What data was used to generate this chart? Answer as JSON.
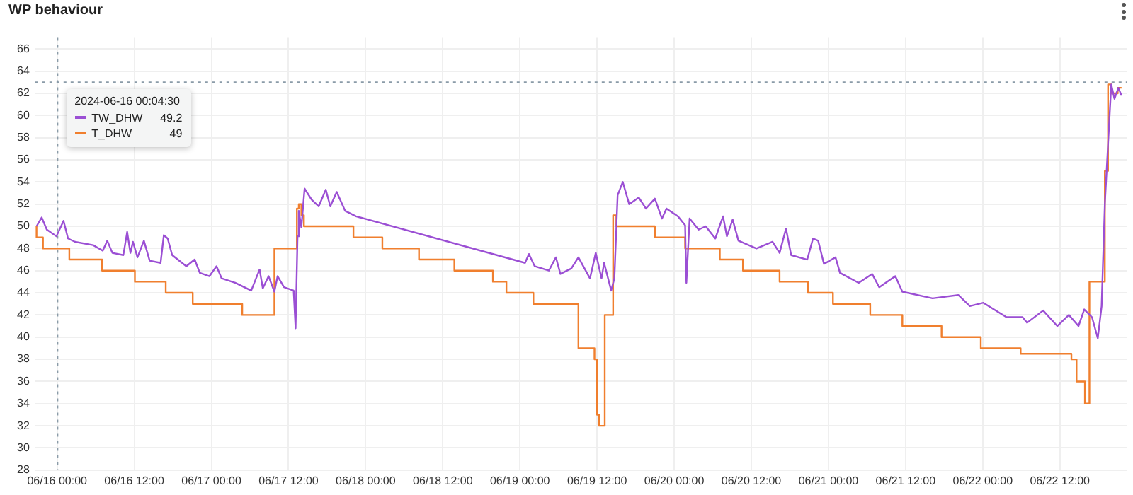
{
  "chart_data": {
    "type": "line",
    "title": "WP behaviour",
    "xlim": [
      "2024-06-15T20:36",
      "2024-06-22T22:30"
    ],
    "xticks": [
      {
        "value": "2024-06-16T00:00",
        "label": "06/16 00:00"
      },
      {
        "value": "2024-06-16T12:00",
        "label": "06/16 12:00"
      },
      {
        "value": "2024-06-17T00:00",
        "label": "06/17 00:00"
      },
      {
        "value": "2024-06-17T12:00",
        "label": "06/17 12:00"
      },
      {
        "value": "2024-06-18T00:00",
        "label": "06/18 00:00"
      },
      {
        "value": "2024-06-18T12:00",
        "label": "06/18 12:00"
      },
      {
        "value": "2024-06-19T00:00",
        "label": "06/19 00:00"
      },
      {
        "value": "2024-06-19T12:00",
        "label": "06/19 12:00"
      },
      {
        "value": "2024-06-20T00:00",
        "label": "06/20 00:00"
      },
      {
        "value": "2024-06-20T12:00",
        "label": "06/20 12:00"
      },
      {
        "value": "2024-06-21T00:00",
        "label": "06/21 00:00"
      },
      {
        "value": "2024-06-21T12:00",
        "label": "06/21 12:00"
      },
      {
        "value": "2024-06-22T00:00",
        "label": "06/22 00:00"
      },
      {
        "value": "2024-06-22T12:00",
        "label": "06/22 12:00"
      }
    ],
    "ylim": [
      28,
      67
    ],
    "yticks": [
      28,
      30,
      32,
      34,
      36,
      38,
      40,
      42,
      44,
      46,
      48,
      50,
      52,
      54,
      56,
      58,
      60,
      62,
      64,
      66
    ],
    "grid": true,
    "legend": "top left",
    "marker": "none",
    "line_style": "solid",
    "ref_lines": [
      {
        "axis": "x",
        "value": "2024-06-16T00:04:30",
        "color": "#8a9ba8",
        "line_style": "dotted"
      },
      {
        "axis": "y",
        "value": 63,
        "color": "#8a9ba8",
        "line_style": "dotted"
      }
    ],
    "annotations": [
      {
        "text": "2024-06-16 00:04:30",
        "x": "2024-06-16T00:04:30"
      },
      "49.2",
      "49"
    ],
    "series": [
      {
        "name": "TW_DHW",
        "color": "#9b4fd4",
        "x": [
          "2024-06-15T20:48",
          "2024-06-15T21:36",
          "2024-06-15T22:24",
          "2024-06-15T23:54",
          "2024-06-16T01:00",
          "2024-06-16T01:42",
          "2024-06-16T02:48",
          "2024-06-16T05:36",
          "2024-06-16T07:06",
          "2024-06-16T07:48",
          "2024-06-16T08:36",
          "2024-06-16T10:18",
          "2024-06-16T10:54",
          "2024-06-16T11:24",
          "2024-06-16T11:48",
          "2024-06-16T12:30",
          "2024-06-16T13:30",
          "2024-06-16T14:24",
          "2024-06-16T16:06",
          "2024-06-16T16:36",
          "2024-06-16T17:12",
          "2024-06-16T17:54",
          "2024-06-16T20:06",
          "2024-06-16T21:24",
          "2024-06-16T22:12",
          "2024-06-16T23:42",
          "2024-06-17T00:48",
          "2024-06-17T01:36",
          "2024-06-17T03:42",
          "2024-06-17T06:12",
          "2024-06-17T07:30",
          "2024-06-17T08:00",
          "2024-06-17T08:54",
          "2024-06-17T09:48",
          "2024-06-17T10:18",
          "2024-06-17T11:18",
          "2024-06-17T12:48",
          "2024-06-17T13:06",
          "2024-06-17T13:24",
          "2024-06-17T13:36",
          "2024-06-17T14:00",
          "2024-06-17T14:30",
          "2024-06-17T15:36",
          "2024-06-17T16:42",
          "2024-06-17T17:48",
          "2024-06-17T18:30",
          "2024-06-17T19:30",
          "2024-06-17T20:48",
          "2024-06-17T22:30",
          "2024-06-19T00:48",
          "2024-06-19T01:24",
          "2024-06-19T02:18",
          "2024-06-19T04:30",
          "2024-06-19T05:36",
          "2024-06-19T06:18",
          "2024-06-19T08:00",
          "2024-06-19T09:06",
          "2024-06-19T10:54",
          "2024-06-19T11:48",
          "2024-06-19T12:42",
          "2024-06-19T13:06",
          "2024-06-19T14:12",
          "2024-06-19T14:42",
          "2024-06-19T15:12",
          "2024-06-19T16:00",
          "2024-06-19T17:00",
          "2024-06-19T18:30",
          "2024-06-19T19:36",
          "2024-06-19T21:00",
          "2024-06-19T22:06",
          "2024-06-19T22:48",
          "2024-06-20T00:36",
          "2024-06-20T01:42",
          "2024-06-20T01:54",
          "2024-06-20T02:24",
          "2024-06-20T03:48",
          "2024-06-20T04:54",
          "2024-06-20T06:24",
          "2024-06-20T07:36",
          "2024-06-20T08:12",
          "2024-06-20T09:06",
          "2024-06-20T10:00",
          "2024-06-20T12:48",
          "2024-06-20T15:18",
          "2024-06-20T16:24",
          "2024-06-20T17:24",
          "2024-06-20T18:12",
          "2024-06-20T20:42",
          "2024-06-20T21:36",
          "2024-06-20T22:24",
          "2024-06-20T23:18",
          "2024-06-21T01:06",
          "2024-06-21T01:48",
          "2024-06-21T04:42",
          "2024-06-21T06:48",
          "2024-06-21T07:54",
          "2024-06-21T10:24",
          "2024-06-21T11:30",
          "2024-06-21T16:12",
          "2024-06-21T20:12",
          "2024-06-21T22:00",
          "2024-06-22T00:06",
          "2024-06-22T03:42",
          "2024-06-22T06:12",
          "2024-06-22T06:54",
          "2024-06-22T09:24",
          "2024-06-22T11:36",
          "2024-06-22T13:24",
          "2024-06-22T14:54",
          "2024-06-22T15:48",
          "2024-06-22T17:00",
          "2024-06-22T17:54",
          "2024-06-22T18:30",
          "2024-06-22T19:00",
          "2024-06-22T20:00",
          "2024-06-22T20:30",
          "2024-06-22T21:06",
          "2024-06-22T21:36"
        ],
        "values": [
          50.0,
          50.8,
          49.7,
          49.1,
          50.5,
          48.9,
          48.6,
          48.3,
          47.8,
          48.7,
          47.6,
          47.4,
          49.5,
          47.6,
          48.6,
          47.2,
          48.7,
          46.9,
          46.7,
          49.2,
          48.9,
          47.4,
          46.4,
          47.0,
          45.8,
          45.5,
          46.4,
          45.3,
          44.9,
          44.2,
          46.1,
          44.4,
          45.5,
          44.1,
          45.5,
          44.5,
          44.2,
          40.8,
          49.1,
          51.4,
          49.9,
          53.4,
          52.4,
          51.8,
          53.3,
          51.8,
          53.1,
          51.4,
          50.9,
          46.7,
          47.5,
          46.4,
          46.0,
          47.2,
          45.7,
          46.2,
          47.2,
          45.3,
          47.6,
          45.3,
          46.7,
          44.2,
          45.3,
          52.8,
          54.0,
          52.0,
          52.6,
          51.6,
          52.5,
          50.7,
          51.6,
          50.9,
          50.1,
          44.9,
          50.7,
          49.7,
          50.0,
          48.9,
          50.9,
          49.1,
          50.6,
          48.7,
          48.0,
          48.6,
          47.6,
          49.8,
          47.4,
          47.0,
          48.9,
          48.7,
          46.6,
          47.2,
          45.8,
          44.9,
          45.7,
          44.5,
          45.5,
          44.1,
          43.5,
          43.8,
          42.8,
          43.1,
          41.8,
          41.8,
          41.3,
          42.4,
          41.0,
          42.0,
          41.0,
          42.5,
          41.8,
          39.9,
          42.8,
          52.0,
          62.8,
          61.5,
          62.5,
          61.8
        ]
      },
      {
        "name": "T_DHW",
        "color": "#f07f2e",
        "type": "step",
        "x": [
          "2024-06-15T20:48",
          "2024-06-15T21:48",
          "2024-06-16T01:54",
          "2024-06-16T07:00",
          "2024-06-16T12:06",
          "2024-06-16T16:54",
          "2024-06-16T21:06",
          "2024-06-17T04:48",
          "2024-06-17T09:48",
          "2024-06-17T13:18",
          "2024-06-17T13:36",
          "2024-06-17T14:00",
          "2024-06-17T14:24",
          "2024-06-17T22:06",
          "2024-06-18T02:36",
          "2024-06-18T08:18",
          "2024-06-18T13:48",
          "2024-06-18T19:48",
          "2024-06-18T21:54",
          "2024-06-19T02:06",
          "2024-06-19T09:06",
          "2024-06-19T11:36",
          "2024-06-19T12:00",
          "2024-06-19T12:18",
          "2024-06-19T13:12",
          "2024-06-19T14:30",
          "2024-06-19T15:00",
          "2024-06-19T21:00",
          "2024-06-20T01:42",
          "2024-06-20T07:06",
          "2024-06-20T10:42",
          "2024-06-20T16:24",
          "2024-06-20T20:48",
          "2024-06-21T00:42",
          "2024-06-21T06:30",
          "2024-06-21T11:30",
          "2024-06-21T17:36",
          "2024-06-21T23:42",
          "2024-06-22T05:54",
          "2024-06-22T13:48",
          "2024-06-22T14:36",
          "2024-06-22T15:54",
          "2024-06-22T16:36",
          "2024-06-22T19:00",
          "2024-06-22T19:30",
          "2024-06-22T20:00",
          "2024-06-22T21:00",
          "2024-06-22T21:36"
        ],
        "values": [
          50,
          49,
          48,
          47,
          46,
          45,
          44,
          43,
          42,
          48,
          51.6,
          52,
          51,
          50,
          49,
          48,
          47,
          46,
          45,
          44,
          43,
          39,
          38,
          33,
          32,
          42,
          51,
          50,
          49,
          48,
          47,
          46,
          45,
          44,
          43,
          42,
          41,
          40,
          39,
          38.5,
          38,
          36,
          34,
          45,
          55,
          62.8,
          62,
          62.5
        ]
      }
    ]
  }
}
